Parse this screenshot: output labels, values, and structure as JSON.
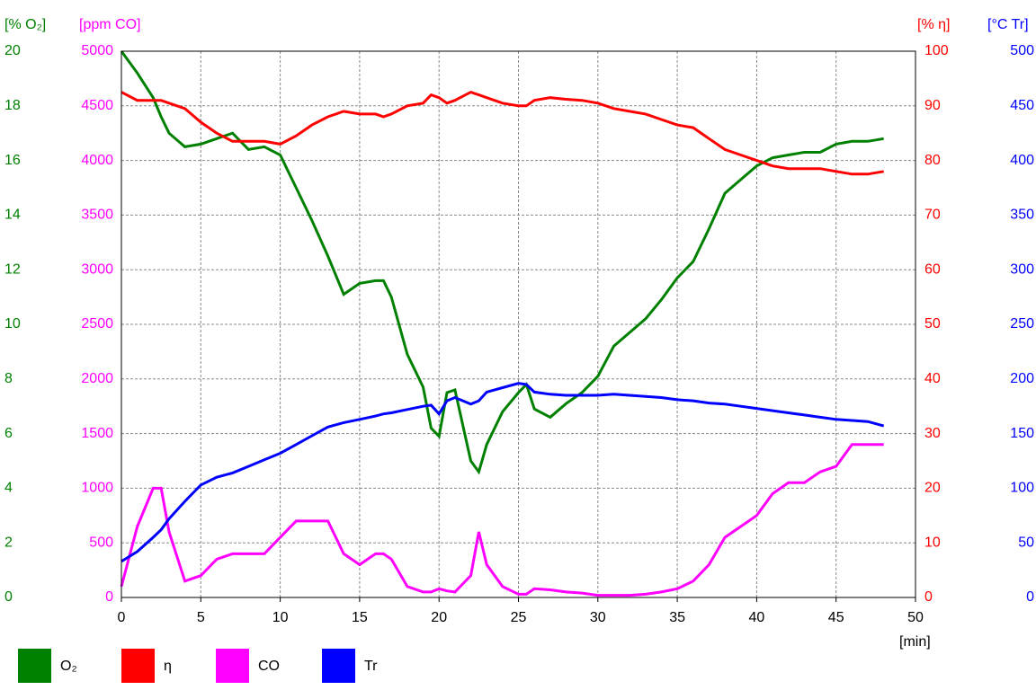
{
  "chart_data": {
    "type": "line",
    "xlabel": "[min]",
    "xlim": [
      0,
      50
    ],
    "xticks": [
      0,
      5,
      10,
      15,
      20,
      25,
      30,
      35,
      40,
      45,
      50
    ],
    "grid": true,
    "x": [
      0,
      1,
      2,
      2.5,
      3,
      4,
      5,
      6,
      7,
      8,
      9,
      10,
      11,
      12,
      13,
      14,
      15,
      16,
      16.5,
      17,
      18,
      19,
      19.5,
      20,
      20.5,
      21,
      22,
      22.5,
      23,
      24,
      25,
      25.5,
      26,
      27,
      28,
      29,
      30,
      31,
      32,
      33,
      34,
      35,
      36,
      37,
      38,
      39,
      40,
      41,
      42,
      43,
      44,
      45,
      46,
      47,
      48
    ],
    "series": [
      {
        "name": "O₂",
        "color": "#008000",
        "side": "left",
        "axis_label": "[% O₂]",
        "ylim": [
          0,
          20
        ],
        "yticks": [
          0,
          2,
          4,
          6,
          8,
          10,
          12,
          14,
          16,
          18,
          20
        ],
        "values": [
          20,
          19.2,
          18.3,
          17.6,
          17,
          16.5,
          16.6,
          16.8,
          17,
          16.4,
          16.5,
          16.2,
          15,
          13.8,
          12.5,
          11.1,
          11.5,
          11.6,
          11.6,
          11,
          8.9,
          7.7,
          6.2,
          5.9,
          7.5,
          7.6,
          5,
          4.6,
          5.6,
          6.8,
          7.5,
          7.8,
          6.9,
          6.6,
          7.1,
          7.5,
          8.1,
          9.2,
          9.7,
          10.2,
          10.9,
          11.7,
          12.3,
          13.5,
          14.8,
          15.3,
          15.8,
          16.1,
          16.2,
          16.3,
          16.3,
          16.6,
          16.7,
          16.7,
          16.8
        ]
      },
      {
        "name": "η",
        "color": "#ff0000",
        "side": "right",
        "axis_label": "[% η]",
        "ylim": [
          0,
          100
        ],
        "yticks": [
          0,
          10,
          20,
          30,
          40,
          50,
          60,
          70,
          80,
          90,
          100
        ],
        "values": [
          92.5,
          91,
          91,
          91,
          90.5,
          89.5,
          87,
          85,
          83.5,
          83.5,
          83.5,
          83,
          84.5,
          86.5,
          88,
          89,
          88.5,
          88.5,
          88,
          88.5,
          90,
          90.5,
          92,
          91.5,
          90.5,
          91,
          92.5,
          92,
          91.5,
          90.5,
          90,
          90,
          91,
          91.5,
          91.2,
          91,
          90.5,
          89.5,
          89,
          88.5,
          87.5,
          86.5,
          86,
          84,
          82,
          81,
          80,
          79,
          78.5,
          78.5,
          78.5,
          78,
          77.5,
          77.5,
          78
        ]
      },
      {
        "name": "CO",
        "color": "#ff00ff",
        "side": "left",
        "axis_label": "[ppm CO]",
        "ylim": [
          0,
          5000
        ],
        "yticks": [
          0,
          500,
          1000,
          1500,
          2000,
          2500,
          3000,
          3500,
          4000,
          4500,
          5000
        ],
        "values": [
          100,
          650,
          1000,
          1000,
          600,
          150,
          200,
          350,
          400,
          400,
          400,
          550,
          700,
          700,
          700,
          400,
          300,
          400,
          400,
          350,
          100,
          50,
          50,
          80,
          60,
          50,
          200,
          600,
          300,
          100,
          30,
          30,
          80,
          70,
          50,
          40,
          20,
          20,
          20,
          30,
          50,
          80,
          150,
          300,
          550,
          650,
          750,
          950,
          1050,
          1050,
          1150,
          1200,
          1400,
          1400,
          1400
        ]
      },
      {
        "name": "Tr",
        "color": "#0000ff",
        "side": "right",
        "axis_label": "[°C Tr]",
        "ylim": [
          0,
          500
        ],
        "yticks": [
          0,
          50,
          100,
          150,
          200,
          250,
          300,
          350,
          400,
          450,
          500
        ],
        "values": [
          33,
          42,
          55,
          62,
          72,
          88,
          103,
          110,
          114,
          120,
          126,
          132,
          140,
          148,
          156,
          160,
          163,
          166,
          168,
          169,
          172,
          175,
          176,
          168,
          180,
          183,
          177,
          180,
          188,
          192,
          196,
          195,
          188,
          186,
          185,
          185,
          185,
          186,
          185,
          184,
          183,
          181,
          180,
          178,
          177,
          175,
          173,
          171,
          169,
          167,
          165,
          163,
          162,
          161,
          157
        ]
      }
    ]
  }
}
